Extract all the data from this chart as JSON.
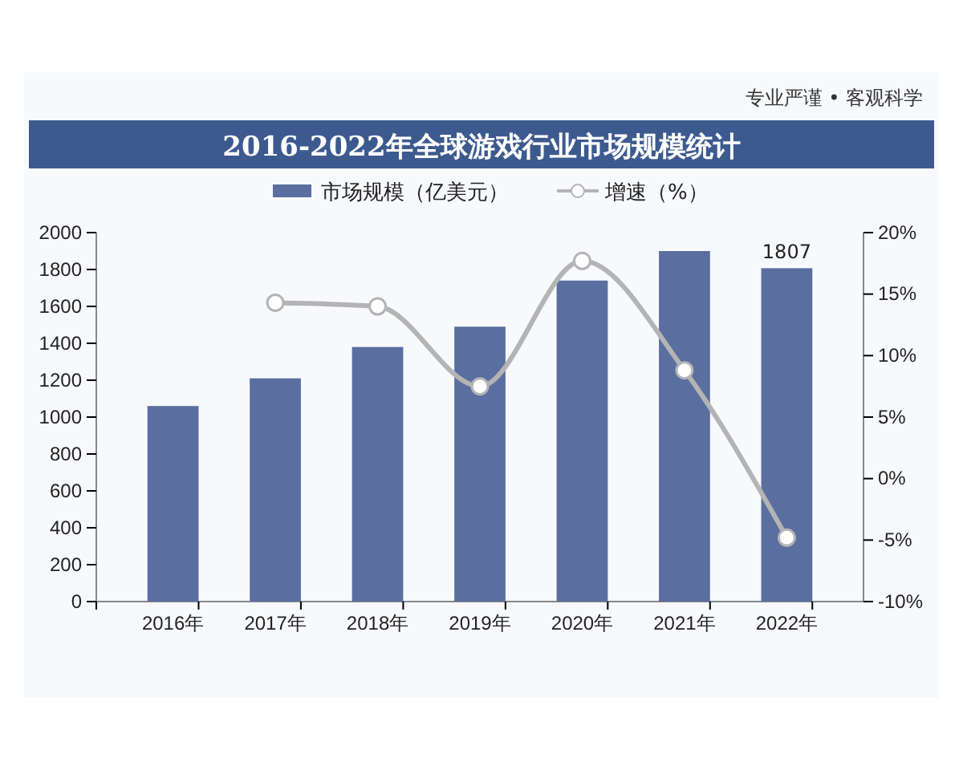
{
  "chart_data": {
    "type": "bar",
    "title": "2016-2022年全球游戏行业市场规模统计",
    "annotations": [
      "专业严谨 • 客观科学"
    ],
    "categories": [
      "2016年",
      "2017年",
      "2018年",
      "2019年",
      "2020年",
      "2021年",
      "2022年"
    ],
    "series": [
      {
        "name": "市场规模（亿美元）",
        "color": "#5a6f9f",
        "values": [
          1060,
          1210,
          1380,
          1490,
          1740,
          1900,
          1807
        ],
        "value_labels": [
          null,
          null,
          null,
          null,
          null,
          null,
          "1807"
        ]
      },
      {
        "name": "增速（%）",
        "type": "line",
        "axis": "y2",
        "color": "#b4b4b4",
        "values": [
          null,
          14.3,
          14.0,
          7.5,
          17.7,
          8.8,
          -4.8
        ]
      }
    ],
    "ylim": [
      0,
      2000
    ],
    "yticks": [
      0,
      200,
      400,
      600,
      800,
      1000,
      1200,
      1400,
      1600,
      1800,
      2000
    ],
    "y2lim": [
      -10,
      20
    ],
    "y2ticks": [
      {
        "value": -10,
        "label": "-10%"
      },
      {
        "value": -5,
        "label": "-5%"
      },
      {
        "value": 0,
        "label": "0%"
      },
      {
        "value": 5,
        "label": "5%"
      },
      {
        "value": 10,
        "label": "10%"
      },
      {
        "value": 15,
        "label": "15%"
      },
      {
        "value": 20,
        "label": "20%"
      }
    ],
    "legend": "top",
    "marker": "circle",
    "line_style": "solid",
    "grid": false
  }
}
